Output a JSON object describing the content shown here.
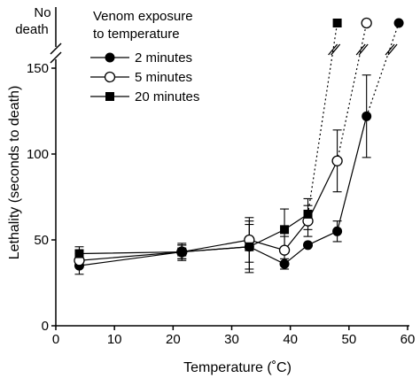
{
  "chart_data": {
    "type": "line",
    "xlabel": "Temperature (˚C)",
    "ylabel": "Lethality (seconds to death)",
    "xlim": [
      0,
      60
    ],
    "ylim": [
      0,
      150
    ],
    "xticks": [
      0,
      10,
      20,
      30,
      40,
      50,
      60
    ],
    "yticks": [
      0,
      50,
      100,
      150
    ],
    "no_death_label": [
      "No",
      "death"
    ],
    "legend_title": [
      "Venom exposure",
      "to temperature"
    ],
    "legend_position": "top-left",
    "grid": false,
    "series": [
      {
        "name": "2 minutes",
        "marker": "filled-circle",
        "points": [
          {
            "x": 4,
            "y": 35,
            "err": 5
          },
          {
            "x": 21.5,
            "y": 43,
            "err": 5
          },
          {
            "x": 33,
            "y": 46,
            "err": 15
          },
          {
            "x": 39,
            "y": 36,
            "err": 3
          },
          {
            "x": 43,
            "y": 47,
            "err": 0
          },
          {
            "x": 48,
            "y": 55,
            "err": 6
          },
          {
            "x": 53,
            "y": 122,
            "err": 24
          }
        ],
        "no_death": {
          "x": 58.5
        }
      },
      {
        "name": "5 minutes",
        "marker": "open-circle",
        "points": [
          {
            "x": 4,
            "y": 38,
            "err": 4
          },
          {
            "x": 21.5,
            "y": 43,
            "err": 4
          },
          {
            "x": 33,
            "y": 50,
            "err": 13
          },
          {
            "x": 39,
            "y": 44,
            "err": 8
          },
          {
            "x": 43,
            "y": 61,
            "err": 9
          },
          {
            "x": 48,
            "y": 96,
            "err": 18
          }
        ],
        "no_death": {
          "x": 53
        }
      },
      {
        "name": "20 minutes",
        "marker": "filled-square",
        "points": [
          {
            "x": 4,
            "y": 42,
            "err": 4
          },
          {
            "x": 21.5,
            "y": 43,
            "err": 4
          },
          {
            "x": 33,
            "y": 46,
            "err": 13
          },
          {
            "x": 39,
            "y": 56,
            "err": 12
          },
          {
            "x": 43,
            "y": 65,
            "err": 9
          }
        ],
        "no_death": {
          "x": 48
        }
      }
    ]
  }
}
